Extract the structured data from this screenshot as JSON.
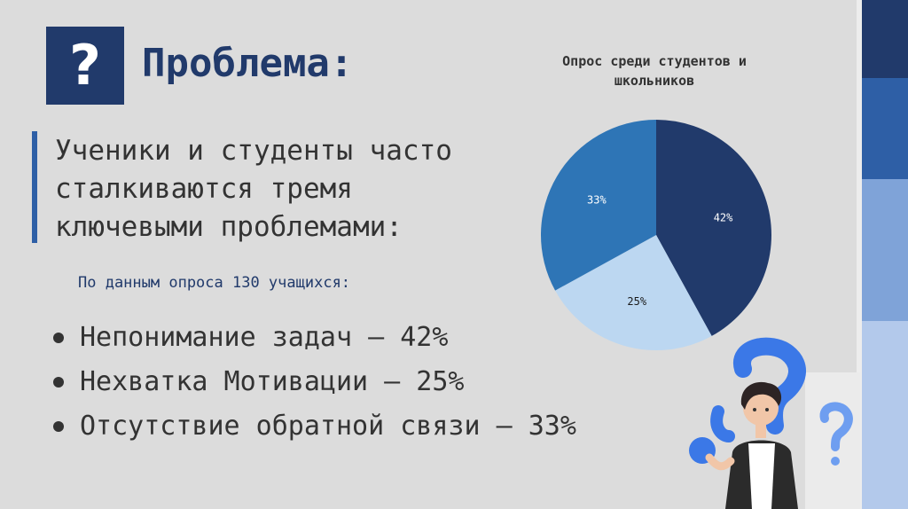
{
  "slide": {
    "title": "Проблема:",
    "title_icon": "question-mark-icon",
    "subheading_lines": [
      "Ученики и студенты часто",
      "сталкиваются тремя",
      "ключевыми проблемами:"
    ],
    "survey_note": "По данным опроса 130 учащихся:",
    "bullets": [
      "Непонимание задач – 42%",
      "Нехватка Мотивации – 25%",
      "Отсутствие обратной связи – 33%"
    ]
  },
  "colors": {
    "primary": "#213a6b",
    "accent": "#2e5fa6",
    "light": "#7fa3d8",
    "lighter": "#b3c9eb",
    "background": "#dcdcdc"
  },
  "chart_data": {
    "type": "pie",
    "title": "Опрос среди студентов и школьников",
    "title_lines": [
      "Опрос среди студентов и",
      "школьников"
    ],
    "slices": [
      {
        "label": "42%",
        "value": 42,
        "color": "#213a6b"
      },
      {
        "label": "25%",
        "value": 25,
        "color": "#bcd7f1"
      },
      {
        "label": "33%",
        "value": 33,
        "color": "#2e75b6"
      }
    ],
    "start": "12 o'clock",
    "direction": "clockwise",
    "legend": "none"
  }
}
